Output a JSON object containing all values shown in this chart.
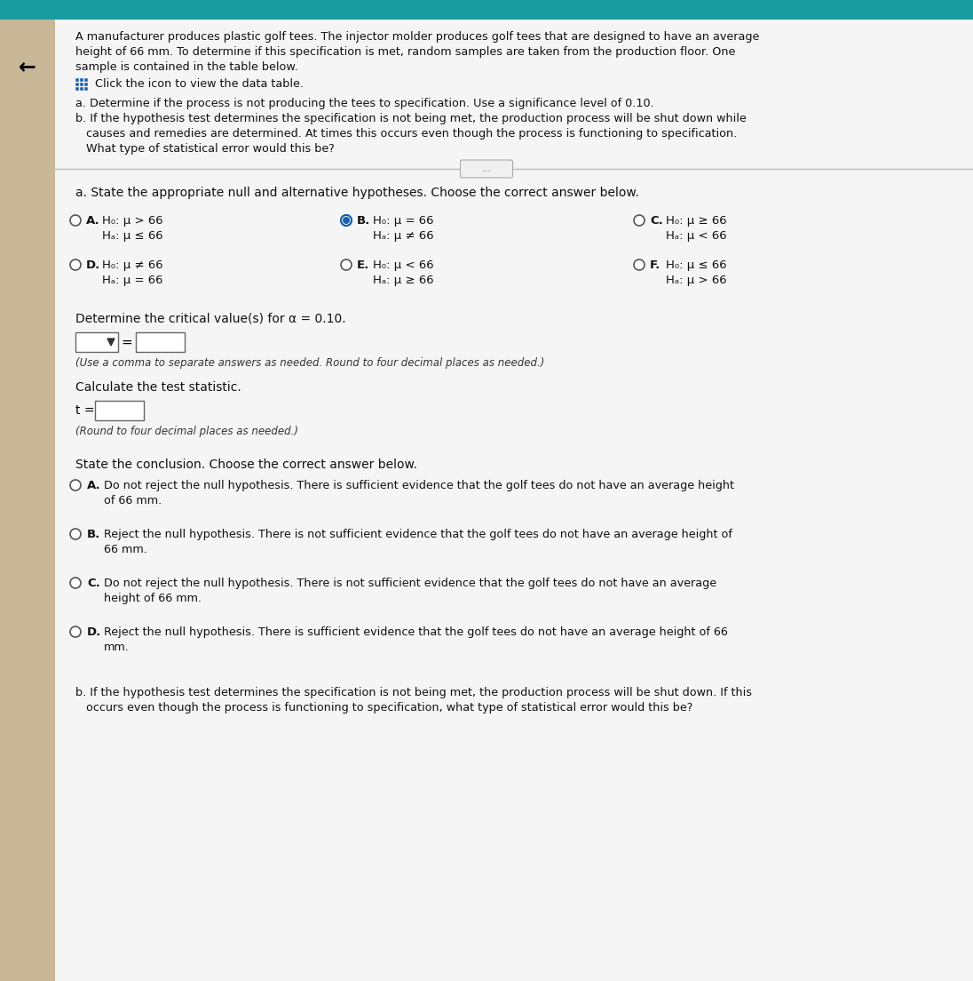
{
  "bg_color": "#e8e8e8",
  "content_bg": "#f5f5f5",
  "header_bg": "#1a9ba0",
  "left_strip_bg": "#c8b898",
  "title_text_line1": "A manufacturer produces plastic golf tees. The injector molder produces golf tees that are designed to have an average",
  "title_text_line2": "height of 66 mm. To determine if this specification is met, random samples are taken from the production floor. One",
  "title_text_line3": "sample is contained in the table below.",
  "click_text": " Click the icon to view the data table.",
  "part_a_intro": "a. Determine if the process is not producing the tees to specification. Use a significance level of 0.10.",
  "part_b_intro_line1": "b. If the hypothesis test determines the specification is not being met, the production process will be shut down while",
  "part_b_intro_line2": "   causes and remedies are determined. At times this occurs even though the process is functioning to specification.",
  "part_b_intro_line3": "   What type of statistical error would this be?",
  "question_a": "a. State the appropriate null and alternative hypotheses. Choose the correct answer below.",
  "options": [
    {
      "label": "A.",
      "h0": "H₀: μ > 66",
      "ha": "Hₐ: μ ≤ 66",
      "selected": false
    },
    {
      "label": "B.",
      "h0": "H₀: μ = 66",
      "ha": "Hₐ: μ ≠ 66",
      "selected": true
    },
    {
      "label": "C.",
      "h0": "H₀: μ ≥ 66",
      "ha": "Hₐ: μ < 66",
      "selected": false
    },
    {
      "label": "D.",
      "h0": "H₀: μ ≠ 66",
      "ha": "Hₐ: μ = 66",
      "selected": false
    },
    {
      "label": "E.",
      "h0": "H₀: μ < 66",
      "ha": "Hₐ: μ ≥ 66",
      "selected": false
    },
    {
      "label": "F.",
      "h0": "H₀: μ ≤ 66",
      "ha": "Hₐ: μ > 66",
      "selected": false
    }
  ],
  "critical_value_text": "Determine the critical value(s) for α = 0.10.",
  "critical_value_note": "(Use a comma to separate answers as needed. Round to four decimal places as needed.)",
  "test_stat_text": "Calculate the test statistic.",
  "test_stat_note": "(Round to four decimal places as needed.)",
  "conclusion_text": "State the conclusion. Choose the correct answer below.",
  "conclusion_options": [
    {
      "label": "A.",
      "line1": "Do not reject the null hypothesis. There is sufficient evidence that the golf tees do not have an average height",
      "line2": "of 66 mm."
    },
    {
      "label": "B.",
      "line1": "Reject the null hypothesis. There is not sufficient evidence that the golf tees do not have an average height of",
      "line2": "66 mm."
    },
    {
      "label": "C.",
      "line1": "Do not reject the null hypothesis. There is not sufficient evidence that the golf tees do not have an average",
      "line2": "height of 66 mm."
    },
    {
      "label": "D.",
      "line1": "Reject the null hypothesis. There is sufficient evidence that the golf tees do not have an average height of 66",
      "line2": "mm."
    }
  ],
  "part_b_footer_line1": "b. If the hypothesis test determines the specification is not being met, the production process will be shut down. If this",
  "part_b_footer_line2": "   occurs even though the process is functioning to specification, what type of statistical error would this be?"
}
